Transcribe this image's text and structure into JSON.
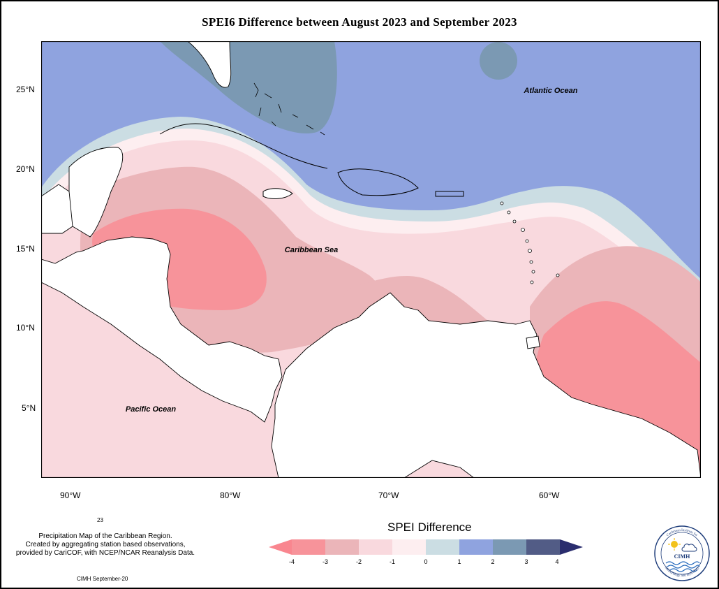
{
  "title": "SPEI6 Difference between August 2023 and September 2023",
  "map": {
    "extent": {
      "lon_min": -92,
      "lon_max": -50.5,
      "lat_min": 1.0,
      "lat_max": 27.6
    },
    "labels": {
      "atlantic": "Atlantic Ocean",
      "caribbean": "Caribbean Sea",
      "pacific": "Pacific Ocean"
    },
    "lat_ticks": [
      "25°N",
      "20°N",
      "15°N",
      "10°N",
      "5°N"
    ],
    "lon_ticks": [
      "90°W",
      "80°W",
      "70°W",
      "60°W"
    ]
  },
  "legend": {
    "title": "SPEI Difference",
    "ticks": [
      "-4",
      "-3",
      "-2",
      "-1",
      "0",
      "1",
      "2",
      "3",
      "4"
    ],
    "colors": [
      "#f7939a",
      "#ebb5b9",
      "#f9d9de",
      "#fdeef0",
      "#cbdde3",
      "#8fa3df",
      "#7b99b3",
      "#525c86"
    ],
    "under_color": "#f9868f",
    "over_color": "#2a2d6e"
  },
  "notes": {
    "index": "23",
    "line1": "Precipitation Map of the Caribbean Region.",
    "line2": "Created by aggregating station based observations,",
    "line3": "provided by CariCOF, with NCEP/NCAR Reanalysis Data.",
    "footer": "CIMH September-20"
  },
  "logo": {
    "text": "CIMH",
    "arc_top": "Caribbean Institute for",
    "arc_bottom": "Meteorology and Hydrology"
  }
}
